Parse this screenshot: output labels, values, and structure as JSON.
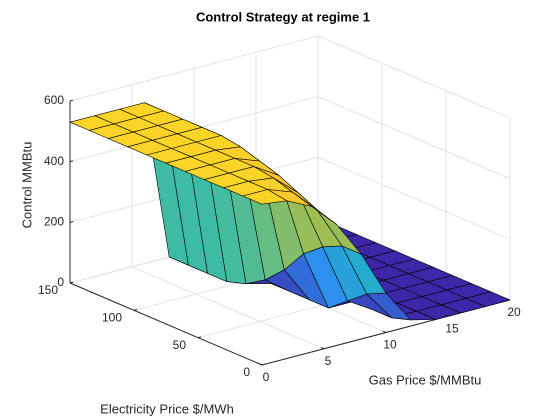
{
  "chart_data": {
    "type": "surface",
    "title": "Control Strategy at regime 1",
    "xlabel": "Gas Price $/MMBtu",
    "ylabel": "Electricity Price $/MWh",
    "zlabel": "Control MMBtu",
    "x": [
      0,
      2,
      4,
      6,
      8,
      10,
      12,
      14,
      16,
      18,
      20
    ],
    "y": [
      0,
      15,
      30,
      45,
      60,
      75,
      90,
      105,
      120,
      135,
      150
    ],
    "z": [
      [
        530,
        520,
        480,
        400,
        280,
        130,
        20,
        0,
        0,
        0,
        0
      ],
      [
        530,
        530,
        500,
        420,
        280,
        100,
        0,
        0,
        0,
        0,
        0
      ],
      [
        530,
        530,
        520,
        450,
        250,
        50,
        0,
        0,
        0,
        0,
        0
      ],
      [
        530,
        530,
        530,
        480,
        200,
        0,
        0,
        0,
        0,
        0,
        0
      ],
      [
        530,
        530,
        530,
        500,
        120,
        0,
        0,
        0,
        0,
        0,
        0
      ],
      [
        530,
        530,
        530,
        520,
        60,
        0,
        0,
        0,
        0,
        0,
        0
      ],
      [
        530,
        530,
        530,
        530,
        20,
        0,
        0,
        0,
        0,
        0,
        0
      ],
      [
        530,
        530,
        530,
        530,
        0,
        0,
        0,
        0,
        0,
        0,
        0
      ],
      [
        530,
        530,
        530,
        530,
        0,
        0,
        0,
        0,
        0,
        0,
        0
      ],
      [
        530,
        530,
        530,
        530,
        0,
        0,
        0,
        0,
        0,
        0,
        0
      ],
      [
        530,
        530,
        530,
        530,
        0,
        0,
        0,
        0,
        0,
        0,
        0
      ]
    ],
    "xlim": [
      0,
      20
    ],
    "xticks": [
      0,
      5,
      10,
      15,
      20
    ],
    "ylim": [
      0,
      150
    ],
    "yticks": [
      0,
      50,
      100,
      150
    ],
    "zlim": [
      0,
      600
    ],
    "zticks": [
      0,
      200,
      400,
      600
    ],
    "grid": true,
    "colormap": [
      "#3e26a8",
      "#2c8ff0",
      "#21bbbb",
      "#a8be4a",
      "#fbb933",
      "#f9fb15"
    ]
  }
}
